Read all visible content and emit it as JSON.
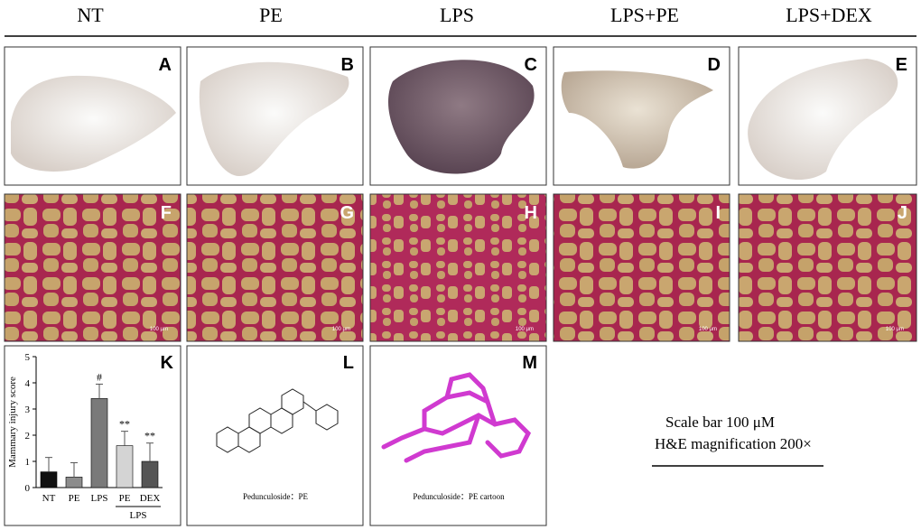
{
  "column_headers": [
    "NT",
    "PE",
    "LPS",
    "LPS+PE",
    "LPS+DEX"
  ],
  "photo_labels": [
    "A",
    "B",
    "C",
    "D",
    "E"
  ],
  "histology_labels": [
    "F",
    "G",
    "H",
    "I",
    "J"
  ],
  "histology_scale_label": "100 μm",
  "chart_data": {
    "type": "bar",
    "panel_label": "K",
    "y_label": "Mammary injury score",
    "categories": [
      "NT",
      "PE",
      "LPS",
      "PE",
      "DEX"
    ],
    "values": [
      0.6,
      0.4,
      3.4,
      1.6,
      1.0
    ],
    "errors": [
      0.55,
      0.55,
      0.55,
      0.55,
      0.7
    ],
    "colors": [
      "#111111",
      "#8c8c8c",
      "#7a7a7a",
      "#d4d4d4",
      "#555555"
    ],
    "significance": [
      null,
      null,
      "#",
      "**",
      "**"
    ],
    "group_label": "LPS",
    "ylim": [
      0,
      5
    ],
    "yticks": [
      0,
      1,
      2,
      3,
      4,
      5
    ]
  },
  "structure_panels": [
    {
      "label": "L",
      "caption": "Pedunculoside：PE"
    },
    {
      "label": "M",
      "caption": "Pedunculoside：PE cartoon"
    }
  ],
  "notes": [
    "Scale bar 100 μM",
    "H&E magnification 200×"
  ]
}
